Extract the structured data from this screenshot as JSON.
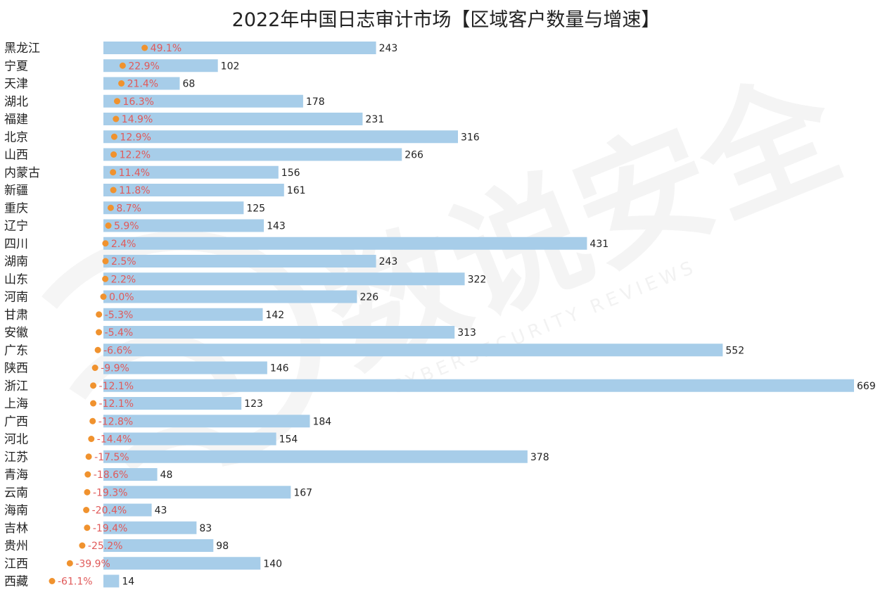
{
  "chart_data": {
    "type": "bar",
    "title": "2022年中国日志审计市场【区域客户数量与增速】",
    "categories": [
      "黑龙江",
      "宁夏",
      "天津",
      "湖北",
      "福建",
      "北京",
      "山西",
      "内蒙古",
      "新疆",
      "重庆",
      "辽宁",
      "四川",
      "湖南",
      "山东",
      "河南",
      "甘肃",
      "安徽",
      "广东",
      "陕西",
      "浙江",
      "上海",
      "广西",
      "河北",
      "江苏",
      "青海",
      "云南",
      "海南",
      "吉林",
      "贵州",
      "江西",
      "西藏"
    ],
    "series": [
      {
        "values": [
          243,
          102,
          68,
          178,
          231,
          316,
          266,
          156,
          161,
          125,
          143,
          431,
          243,
          322,
          226,
          142,
          313,
          552,
          146,
          669,
          123,
          184,
          154,
          378,
          48,
          167,
          43,
          83,
          98,
          140,
          14
        ],
        "color": "#a7cde9"
      },
      {
        "values": [
          49.1,
          22.9,
          21.4,
          16.3,
          14.9,
          12.9,
          12.2,
          11.4,
          11.8,
          8.7,
          5.9,
          2.4,
          2.5,
          2.2,
          0.0,
          -5.3,
          -5.4,
          -6.6,
          -9.9,
          -12.1,
          -12.1,
          -12.8,
          -14.4,
          -17.5,
          -18.6,
          -19.3,
          -20.4,
          -19.4,
          -25.2,
          -39.9,
          -61.1
        ],
        "labels": [
          "49.1%",
          "22.9%",
          "21.4%",
          "16.3%",
          "14.9%",
          "12.9%",
          "12.2%",
          "11.4%",
          "11.8%",
          "8.7%",
          "5.9%",
          "2.4%",
          "2.5%",
          "2.2%",
          "0.0%",
          "-5.3%",
          "-5.4%",
          "-6.6%",
          "-9.9%",
          "-12.1%",
          "-12.1%",
          "-12.8%",
          "-14.4%",
          "-17.5%",
          "-18.6%",
          "-19.3%",
          "-20.4%",
          "-19.4%",
          "-25.2%",
          "-39.9%",
          "-61.1%"
        ],
        "color": "#f0922e",
        "label_color": "#e05a5a"
      }
    ],
    "orientation": "horizontal",
    "grid": false,
    "legend": "none"
  },
  "watermark": {
    "text": "数说安全",
    "subtext": "CYBERSECURITY REVIEWS"
  }
}
